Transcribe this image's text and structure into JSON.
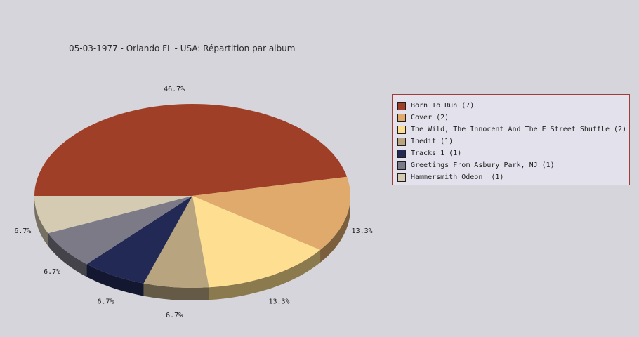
{
  "chart_data": {
    "type": "pie",
    "title": "05-03-1977 - Orlando FL - USA:  Répartition par album",
    "slices": [
      {
        "label": "Born To Run (7)",
        "value": 7,
        "percent_label": "46.7%",
        "color": "#a03f28"
      },
      {
        "label": "Cover (2)",
        "value": 2,
        "percent_label": "13.3%",
        "color": "#e0aa6c"
      },
      {
        "label": "The Wild, The Innocent And The E Street Shuffle (2)",
        "value": 2,
        "percent_label": "13.3%",
        "color": "#fede90"
      },
      {
        "label": "Inedit (1)",
        "value": 1,
        "percent_label": "6.7%",
        "color": "#b8a47e"
      },
      {
        "label": "Tracks 1 (1)",
        "value": 1,
        "percent_label": "6.7%",
        "color": "#222955"
      },
      {
        "label": "Greetings From Asbury Park, NJ (1)",
        "value": 1,
        "percent_label": "6.7%",
        "color": "#7b7a86"
      },
      {
        "label": "Hammersmith Odeon  (1)",
        "value": 1,
        "percent_label": "6.7%",
        "color": "#d5cbb2"
      }
    ],
    "legend_position": "right",
    "style": "3d-pie"
  }
}
